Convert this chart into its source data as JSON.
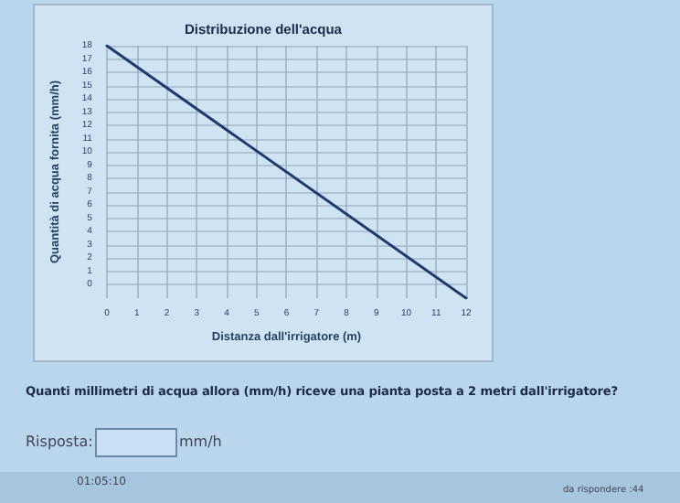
{
  "chart_data": {
    "type": "line",
    "title": "Distribuzione dell'acqua",
    "xlabel": "Distanza dall'irrigatore (m)",
    "ylabel": "Quantità di acqua fornita (mm/h)",
    "x": [
      0,
      12
    ],
    "series": [
      {
        "color": "#1f3a6e",
        "values": [
          18,
          -1
        ]
      }
    ],
    "xlim": [
      0,
      12
    ],
    "xticks": [
      0,
      1,
      2,
      3,
      4,
      5,
      6,
      7,
      8,
      9,
      10,
      11,
      12
    ],
    "ylim": [
      -1,
      18
    ],
    "yticks": [
      0,
      1,
      2,
      3,
      4,
      5,
      6,
      7,
      8,
      9,
      10,
      11,
      12,
      13,
      14,
      15,
      16,
      17,
      18
    ],
    "grid": true,
    "marker": "none",
    "line_style": "solid",
    "annotations": [
      "Quanti millimetri di acqua allora (mm/h) riceve una pianta posta a 2 metri dall'irrigatore?",
      "Risposta:",
      "mm/h",
      "01:05:10",
      "da rispondere :44"
    ]
  }
}
